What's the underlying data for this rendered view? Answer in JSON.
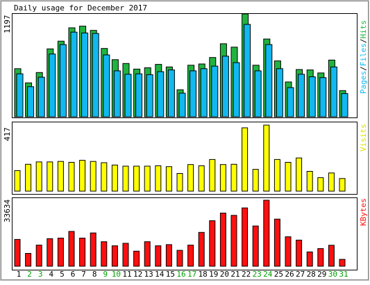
{
  "chart_data": [
    {
      "type": "bar",
      "title": "Daily usage for December 2017",
      "ylabel_parts": [
        "Pages",
        "Files",
        "Hits"
      ],
      "ymax_label": "1197",
      "ylim": [
        0,
        1197
      ],
      "series": [
        {
          "name": "Hits",
          "color": "#21b340",
          "values": [
            560,
            395,
            515,
            790,
            880,
            1035,
            1055,
            1005,
            795,
            665,
            620,
            555,
            570,
            610,
            580,
            315,
            600,
            615,
            690,
            850,
            810,
            1197,
            600,
            905,
            650,
            405,
            550,
            545,
            510,
            660,
            305
          ]
        },
        {
          "name": "Files",
          "color": "#12b8f0",
          "values": [
            500,
            350,
            460,
            730,
            840,
            985,
            975,
            970,
            720,
            535,
            495,
            500,
            490,
            525,
            545,
            275,
            535,
            560,
            590,
            705,
            630,
            1075,
            535,
            840,
            560,
            340,
            495,
            465,
            455,
            580,
            270
          ]
        },
        {
          "name": "Pages",
          "color": "#12b8f0",
          "values": []
        }
      ]
    },
    {
      "type": "bar",
      "ylabel": "Visits",
      "ymax_label": "417",
      "ylim": [
        0,
        417
      ],
      "series": [
        {
          "name": "Visits",
          "color": "#ffff00",
          "values": [
            130,
            170,
            185,
            185,
            188,
            182,
            195,
            188,
            180,
            165,
            158,
            158,
            158,
            160,
            155,
            112,
            168,
            160,
            200,
            168,
            170,
            400,
            138,
            417,
            200,
            182,
            210,
            125,
            85,
            115,
            80
          ]
        }
      ]
    },
    {
      "type": "bar",
      "ylabel": "KBytes",
      "ymax_label": "33634",
      "ylim": [
        0,
        33634
      ],
      "series": [
        {
          "name": "KBytes",
          "color": "#ff1010",
          "values": [
            13650,
            6550,
            10750,
            14050,
            14350,
            17750,
            14350,
            16950,
            12500,
            10400,
            11700,
            7700,
            12500,
            10400,
            11000,
            8100,
            10750,
            17250,
            23200,
            27100,
            25900,
            29700,
            20500,
            33634,
            24000,
            15000,
            13300,
            7300,
            9000,
            10700,
            3500
          ]
        }
      ]
    }
  ],
  "days": {
    "labels": [
      "1",
      "2",
      "3",
      "4",
      "5",
      "6",
      "7",
      "8",
      "9",
      "10",
      "11",
      "12",
      "13",
      "14",
      "15",
      "16",
      "17",
      "18",
      "19",
      "20",
      "21",
      "22",
      "23",
      "24",
      "25",
      "26",
      "27",
      "28",
      "29",
      "30",
      "31"
    ],
    "weekend_indices": [
      1,
      2,
      8,
      9,
      15,
      16,
      22,
      23,
      29,
      30
    ],
    "weekday_color": "#000000",
    "weekend_color": "#00a000"
  },
  "colors": {
    "hits": "#21b340",
    "files": "#12b8f0",
    "pages": "#12b8f0",
    "visits": "#ffff00",
    "kbytes": "#ff1010",
    "separator": "#000000"
  }
}
